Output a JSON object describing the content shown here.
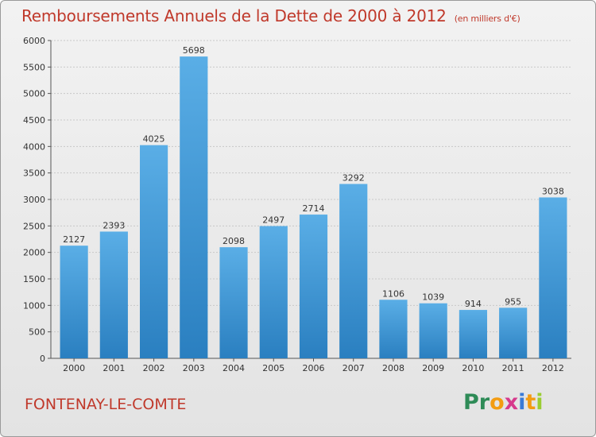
{
  "title": "Remboursements Annuels de la Dette de 2000 à 2012",
  "subtitle": "(en milliers d'€)",
  "city": "FONTENAY-LE-COMTE",
  "logo": {
    "letters": [
      "P",
      "r",
      "o",
      "x",
      "i",
      "t",
      "i"
    ],
    "colors": [
      "#2e8b57",
      "#2e8b57",
      "#f39c12",
      "#d63a8c",
      "#3a7ad6",
      "#f39c12",
      "#9acd32"
    ]
  },
  "colors": {
    "bar_top": "#5aaee6",
    "bar_bottom": "#2a7fc0",
    "title": "#c0392b"
  },
  "chart_data": {
    "type": "bar",
    "categories": [
      "2000",
      "2001",
      "2002",
      "2003",
      "2004",
      "2005",
      "2006",
      "2007",
      "2008",
      "2009",
      "2010",
      "2011",
      "2012"
    ],
    "values": [
      2127,
      2393,
      4025,
      5698,
      2098,
      2497,
      2714,
      3292,
      1106,
      1039,
      914,
      955,
      3038
    ],
    "ylim": [
      0,
      6000
    ],
    "yticks": [
      0,
      500,
      1000,
      1500,
      2000,
      2500,
      3000,
      3500,
      4000,
      4500,
      5000,
      5500,
      6000
    ],
    "grid": true,
    "data_labels": true
  }
}
